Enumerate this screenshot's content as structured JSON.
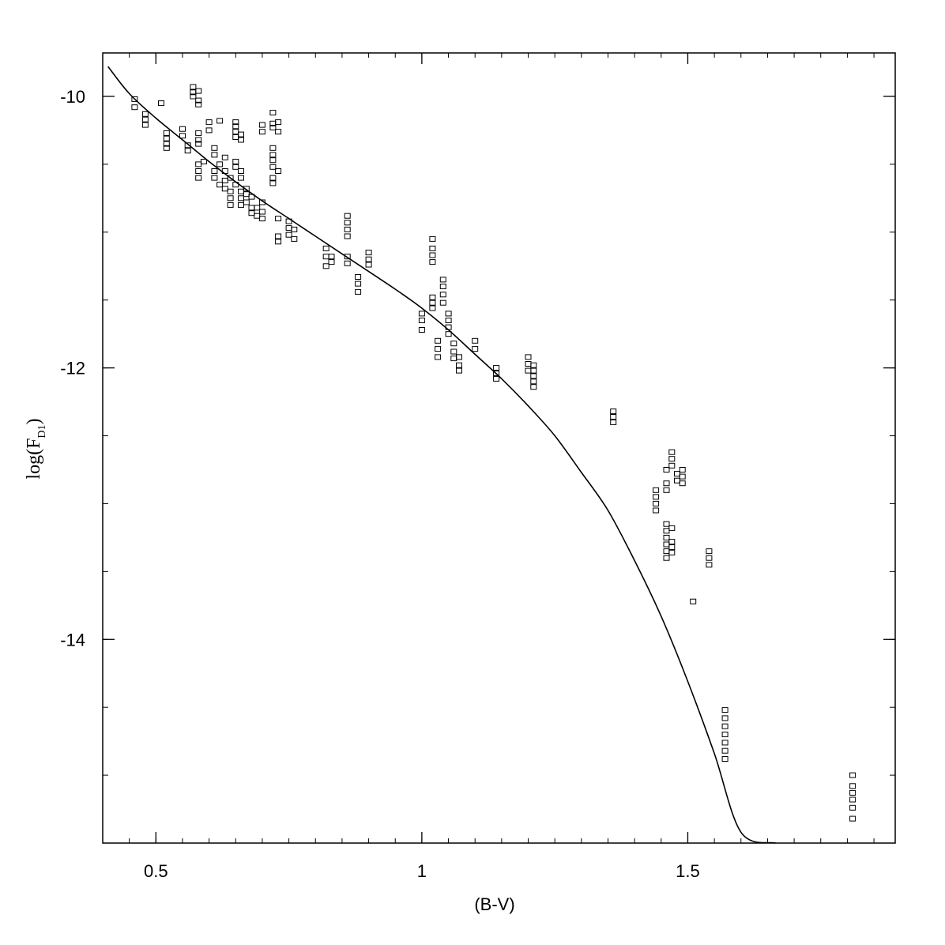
{
  "chart_data": {
    "type": "scatter",
    "title": "",
    "xlabel": "(B-V)",
    "ylabel": {
      "main": "log(F",
      "subscript": "D1",
      "close": ")"
    },
    "xlim": [
      0.4,
      1.89
    ],
    "ylim": [
      -15.5,
      -9.68
    ],
    "x_ticks": [
      {
        "value": 0.5,
        "label": "0.5"
      },
      {
        "value": 1.0,
        "label": "1"
      },
      {
        "value": 1.5,
        "label": "1.5"
      }
    ],
    "y_ticks": [
      {
        "value": -10,
        "label": "-10"
      },
      {
        "value": -12,
        "label": "-12"
      },
      {
        "value": -14,
        "label": "-14"
      }
    ],
    "x_minor_step": 0.05,
    "y_minor_step": 0.5,
    "grid": false,
    "legend": "none",
    "marker": "open-square",
    "colors": {
      "ink": "#000000",
      "background": "#ffffff"
    },
    "fit_curve": [
      [
        0.41,
        -9.78
      ],
      [
        0.45,
        -9.98
      ],
      [
        0.5,
        -10.16
      ],
      [
        0.55,
        -10.32
      ],
      [
        0.6,
        -10.48
      ],
      [
        0.65,
        -10.63
      ],
      [
        0.7,
        -10.77
      ],
      [
        0.75,
        -10.9
      ],
      [
        0.8,
        -11.03
      ],
      [
        0.85,
        -11.16
      ],
      [
        0.9,
        -11.29
      ],
      [
        0.95,
        -11.42
      ],
      [
        1.0,
        -11.56
      ],
      [
        1.05,
        -11.72
      ],
      [
        1.1,
        -11.9
      ],
      [
        1.15,
        -12.08
      ],
      [
        1.2,
        -12.28
      ],
      [
        1.25,
        -12.5
      ],
      [
        1.3,
        -12.77
      ],
      [
        1.35,
        -13.05
      ],
      [
        1.4,
        -13.42
      ],
      [
        1.45,
        -13.83
      ],
      [
        1.5,
        -14.31
      ],
      [
        1.55,
        -14.84
      ],
      [
        1.6,
        -15.42
      ],
      [
        1.665,
        -15.5
      ]
    ],
    "series": [
      {
        "points": [
          [
            0.46,
            -10.02
          ],
          [
            0.46,
            -10.08
          ],
          [
            0.48,
            -10.13
          ],
          [
            0.48,
            -10.17
          ],
          [
            0.48,
            -10.21
          ],
          [
            0.51,
            -10.05
          ],
          [
            0.52,
            -10.27
          ],
          [
            0.52,
            -10.31
          ],
          [
            0.52,
            -10.35
          ],
          [
            0.52,
            -10.38
          ],
          [
            0.55,
            -10.24
          ],
          [
            0.55,
            -10.29
          ],
          [
            0.56,
            -10.36
          ],
          [
            0.56,
            -10.4
          ],
          [
            0.57,
            -9.93
          ],
          [
            0.57,
            -9.97
          ],
          [
            0.57,
            -10.0
          ],
          [
            0.58,
            -9.96
          ],
          [
            0.58,
            -10.03
          ],
          [
            0.58,
            -10.06
          ],
          [
            0.58,
            -10.32
          ],
          [
            0.58,
            -10.35
          ],
          [
            0.58,
            -10.27
          ],
          [
            0.58,
            -10.5
          ],
          [
            0.58,
            -10.55
          ],
          [
            0.58,
            -10.6
          ],
          [
            0.59,
            -10.48
          ],
          [
            0.6,
            -10.19
          ],
          [
            0.6,
            -10.25
          ],
          [
            0.61,
            -10.38
          ],
          [
            0.61,
            -10.43
          ],
          [
            0.62,
            -10.18
          ],
          [
            0.61,
            -10.55
          ],
          [
            0.61,
            -10.6
          ],
          [
            0.62,
            -10.5
          ],
          [
            0.62,
            -10.65
          ],
          [
            0.63,
            -10.45
          ],
          [
            0.63,
            -10.55
          ],
          [
            0.63,
            -10.62
          ],
          [
            0.63,
            -10.68
          ],
          [
            0.64,
            -10.6
          ],
          [
            0.64,
            -10.7
          ],
          [
            0.64,
            -10.75
          ],
          [
            0.64,
            -10.8
          ],
          [
            0.65,
            -10.19
          ],
          [
            0.65,
            -10.22
          ],
          [
            0.65,
            -10.26
          ],
          [
            0.65,
            -10.3
          ],
          [
            0.66,
            -10.28
          ],
          [
            0.66,
            -10.32
          ],
          [
            0.65,
            -10.48
          ],
          [
            0.65,
            -10.52
          ],
          [
            0.66,
            -10.55
          ],
          [
            0.66,
            -10.6
          ],
          [
            0.65,
            -10.65
          ],
          [
            0.66,
            -10.7
          ],
          [
            0.66,
            -10.75
          ],
          [
            0.66,
            -10.8
          ],
          [
            0.67,
            -10.68
          ],
          [
            0.67,
            -10.72
          ],
          [
            0.67,
            -10.78
          ],
          [
            0.68,
            -10.74
          ],
          [
            0.68,
            -10.82
          ],
          [
            0.68,
            -10.86
          ],
          [
            0.69,
            -10.82
          ],
          [
            0.7,
            -10.78
          ],
          [
            0.7,
            -10.85
          ],
          [
            0.7,
            -10.9
          ],
          [
            0.69,
            -10.88
          ],
          [
            0.7,
            -10.21
          ],
          [
            0.7,
            -10.26
          ],
          [
            0.72,
            -10.12
          ],
          [
            0.72,
            -10.2
          ],
          [
            0.72,
            -10.23
          ],
          [
            0.73,
            -10.19
          ],
          [
            0.73,
            -10.26
          ],
          [
            0.72,
            -10.38
          ],
          [
            0.72,
            -10.43
          ],
          [
            0.72,
            -10.47
          ],
          [
            0.72,
            -10.52
          ],
          [
            0.72,
            -10.6
          ],
          [
            0.72,
            -10.64
          ],
          [
            0.73,
            -10.55
          ],
          [
            0.73,
            -10.9
          ],
          [
            0.73,
            -11.03
          ],
          [
            0.73,
            -11.07
          ],
          [
            0.75,
            -10.92
          ],
          [
            0.75,
            -10.97
          ],
          [
            0.75,
            -11.02
          ],
          [
            0.76,
            -10.98
          ],
          [
            0.76,
            -11.05
          ],
          [
            0.82,
            -11.12
          ],
          [
            0.82,
            -11.18
          ],
          [
            0.82,
            -11.25
          ],
          [
            0.83,
            -11.18
          ],
          [
            0.83,
            -11.22
          ],
          [
            0.86,
            -10.88
          ],
          [
            0.86,
            -10.93
          ],
          [
            0.86,
            -10.98
          ],
          [
            0.86,
            -11.03
          ],
          [
            0.86,
            -11.18
          ],
          [
            0.86,
            -11.23
          ],
          [
            0.88,
            -11.33
          ],
          [
            0.88,
            -11.38
          ],
          [
            0.88,
            -11.44
          ],
          [
            0.9,
            -11.15
          ],
          [
            0.9,
            -11.2
          ],
          [
            0.9,
            -11.24
          ],
          [
            1.0,
            -11.6
          ],
          [
            1.0,
            -11.65
          ],
          [
            1.0,
            -11.72
          ],
          [
            1.02,
            -11.05
          ],
          [
            1.02,
            -11.12
          ],
          [
            1.02,
            -11.17
          ],
          [
            1.02,
            -11.22
          ],
          [
            1.02,
            -11.48
          ],
          [
            1.02,
            -11.52
          ],
          [
            1.02,
            -11.56
          ],
          [
            1.03,
            -11.8
          ],
          [
            1.03,
            -11.86
          ],
          [
            1.03,
            -11.92
          ],
          [
            1.04,
            -11.35
          ],
          [
            1.04,
            -11.4
          ],
          [
            1.04,
            -11.46
          ],
          [
            1.04,
            -11.52
          ],
          [
            1.05,
            -11.6
          ],
          [
            1.05,
            -11.65
          ],
          [
            1.05,
            -11.7
          ],
          [
            1.05,
            -11.75
          ],
          [
            1.06,
            -11.82
          ],
          [
            1.06,
            -11.88
          ],
          [
            1.06,
            -11.93
          ],
          [
            1.07,
            -11.92
          ],
          [
            1.07,
            -11.98
          ],
          [
            1.07,
            -12.02
          ],
          [
            1.1,
            -11.8
          ],
          [
            1.1,
            -11.86
          ],
          [
            1.14,
            -12.0
          ],
          [
            1.14,
            -12.04
          ],
          [
            1.14,
            -12.08
          ],
          [
            1.2,
            -11.92
          ],
          [
            1.2,
            -11.97
          ],
          [
            1.2,
            -12.02
          ],
          [
            1.21,
            -11.98
          ],
          [
            1.21,
            -12.02
          ],
          [
            1.21,
            -12.06
          ],
          [
            1.21,
            -12.1
          ],
          [
            1.21,
            -12.14
          ],
          [
            1.36,
            -12.32
          ],
          [
            1.36,
            -12.36
          ],
          [
            1.36,
            -12.4
          ],
          [
            1.44,
            -12.9
          ],
          [
            1.44,
            -12.95
          ],
          [
            1.44,
            -13.0
          ],
          [
            1.44,
            -13.05
          ],
          [
            1.46,
            -12.75
          ],
          [
            1.46,
            -12.85
          ],
          [
            1.46,
            -12.9
          ],
          [
            1.47,
            -12.62
          ],
          [
            1.47,
            -12.67
          ],
          [
            1.47,
            -12.72
          ],
          [
            1.48,
            -12.78
          ],
          [
            1.48,
            -12.83
          ],
          [
            1.49,
            -12.75
          ],
          [
            1.49,
            -12.8
          ],
          [
            1.49,
            -12.85
          ],
          [
            1.46,
            -13.15
          ],
          [
            1.46,
            -13.2
          ],
          [
            1.46,
            -13.25
          ],
          [
            1.46,
            -13.3
          ],
          [
            1.46,
            -13.35
          ],
          [
            1.46,
            -13.4
          ],
          [
            1.47,
            -13.18
          ],
          [
            1.47,
            -13.28
          ],
          [
            1.47,
            -13.32
          ],
          [
            1.47,
            -13.36
          ],
          [
            1.54,
            -13.35
          ],
          [
            1.54,
            -13.4
          ],
          [
            1.54,
            -13.45
          ],
          [
            1.51,
            -13.72
          ],
          [
            1.57,
            -14.52
          ],
          [
            1.57,
            -14.58
          ],
          [
            1.57,
            -14.64
          ],
          [
            1.57,
            -14.7
          ],
          [
            1.57,
            -14.76
          ],
          [
            1.57,
            -14.82
          ],
          [
            1.57,
            -14.88
          ],
          [
            1.81,
            -15.0
          ],
          [
            1.81,
            -15.08
          ],
          [
            1.81,
            -15.13
          ],
          [
            1.81,
            -15.18
          ],
          [
            1.81,
            -15.24
          ],
          [
            1.81,
            -15.32
          ]
        ]
      }
    ]
  }
}
